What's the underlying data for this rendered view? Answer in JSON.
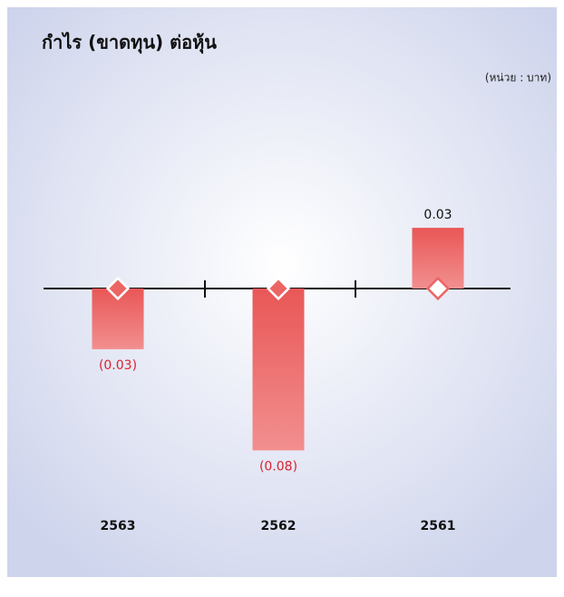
{
  "chart_data": {
    "type": "bar",
    "title": "กำไร (ขาดทุน) ต่อหุ้น",
    "subtitle": "(หน่วย : บาท)",
    "categories": [
      "2563",
      "2562",
      "2561"
    ],
    "values": [
      -0.03,
      -0.08,
      0.03
    ],
    "value_labels": [
      "(0.03)",
      "(0.08)",
      "0.03"
    ],
    "color": "#ec6565",
    "negative_label_color": "#d9232e",
    "ylim": [
      -0.1,
      0.05
    ]
  }
}
